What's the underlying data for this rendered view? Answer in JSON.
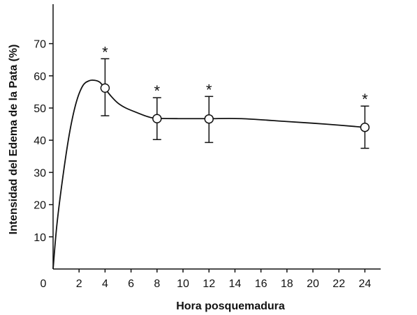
{
  "chart_data": {
    "type": "line",
    "xlabel": "Hora posquemadura",
    "ylabel": "Intensidad del Edema de la Pata (%)",
    "xlim": [
      0,
      30
    ],
    "ylim": [
      0,
      80
    ],
    "x_ticks": [
      0,
      2,
      4,
      6,
      8,
      10,
      12,
      14,
      16,
      18,
      20,
      22,
      24
    ],
    "x_tick_labels": [
      "0",
      "2",
      "4",
      "6",
      "8",
      "10",
      "12",
      "14",
      "16",
      "18",
      "20",
      "22",
      "24"
    ],
    "y_ticks": [
      10,
      20,
      30,
      40,
      50,
      60,
      70
    ],
    "y_tick_labels": [
      "10",
      "20",
      "30",
      "40",
      "50",
      "60",
      "70"
    ],
    "curve": {
      "x": [
        0,
        0.3,
        0.8,
        1.3,
        1.8,
        2.3,
        2.8,
        3.2,
        3.6,
        4.0,
        4.5,
        5.0,
        5.6,
        6.5,
        7.3,
        8.0,
        10.0,
        12.0,
        14.5,
        18.0,
        21.0,
        24.0
      ],
      "y": [
        0,
        14,
        30,
        43,
        52,
        57,
        58.5,
        58.6,
        58.0,
        56.0,
        53.5,
        51.5,
        50.0,
        48.5,
        47.3,
        46.8,
        46.7,
        46.7,
        46.7,
        45.8,
        45.0,
        44.0
      ]
    },
    "points": [
      {
        "x": 4,
        "y": 56.2,
        "err_low": 47.6,
        "err_high": 65.3,
        "label": "*"
      },
      {
        "x": 8,
        "y": 46.7,
        "err_low": 40.2,
        "err_high": 53.2,
        "label": "*"
      },
      {
        "x": 12,
        "y": 46.6,
        "err_low": 39.3,
        "err_high": 53.6,
        "label": "*"
      },
      {
        "x": 24,
        "y": 44.0,
        "err_low": 37.5,
        "err_high": 50.6,
        "label": "*"
      }
    ],
    "grid": false,
    "legend": "none"
  }
}
